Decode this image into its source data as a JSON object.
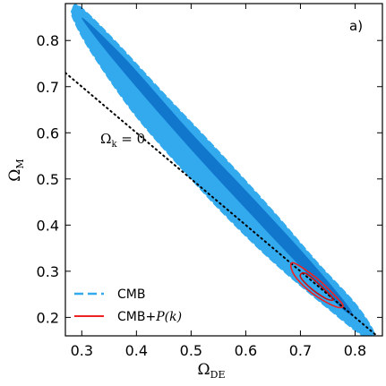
{
  "chart_data": {
    "type": "contour",
    "panel_label": "a)",
    "xlabel": {
      "main": "Ω",
      "sub": "DE"
    },
    "ylabel": {
      "main": "Ω",
      "sub": "M"
    },
    "xlim": [
      0.27,
      0.85
    ],
    "ylim": [
      0.16,
      0.88
    ],
    "x_ticks": [
      "0.3",
      "0.4",
      "0.5",
      "0.6",
      "0.7",
      "0.8"
    ],
    "y_ticks": [
      "0.2",
      "0.3",
      "0.4",
      "0.5",
      "0.6",
      "0.7",
      "0.8"
    ],
    "flat_line": {
      "label_main": "Ω",
      "label_sub": "k",
      "label_rest": " = 0",
      "x": [
        0.27,
        0.85
      ],
      "y": [
        0.73,
        0.15
      ]
    },
    "series": [
      {
        "name": "CMB",
        "color_outer": "#33aaee",
        "color_inner": "#1177cc",
        "outer": [
          [
            0.283,
            0.868
          ],
          [
            0.297,
            0.873
          ],
          [
            0.36,
            0.8
          ],
          [
            0.45,
            0.685
          ],
          [
            0.55,
            0.56
          ],
          [
            0.65,
            0.43
          ],
          [
            0.73,
            0.32
          ],
          [
            0.8,
            0.23
          ],
          [
            0.835,
            0.165
          ],
          [
            0.815,
            0.16
          ],
          [
            0.75,
            0.22
          ],
          [
            0.66,
            0.31
          ],
          [
            0.58,
            0.4
          ],
          [
            0.5,
            0.5
          ],
          [
            0.4,
            0.635
          ],
          [
            0.32,
            0.77
          ],
          [
            0.285,
            0.845
          ]
        ],
        "inner": [
          [
            0.3,
            0.85
          ],
          [
            0.38,
            0.76
          ],
          [
            0.5,
            0.6
          ],
          [
            0.62,
            0.45
          ],
          [
            0.72,
            0.32
          ],
          [
            0.79,
            0.22
          ],
          [
            0.78,
            0.215
          ],
          [
            0.7,
            0.31
          ],
          [
            0.6,
            0.435
          ],
          [
            0.48,
            0.59
          ],
          [
            0.36,
            0.755
          ]
        ]
      },
      {
        "name": "CMB+P(k)",
        "legend_text": "CMB+",
        "legend_math": "P(k)",
        "color_outer": "#ee2222",
        "color_inner": "#cc1111",
        "outer": [
          [
            0.688,
            0.318
          ],
          [
            0.73,
            0.285
          ],
          [
            0.765,
            0.245
          ],
          [
            0.778,
            0.225
          ],
          [
            0.765,
            0.223
          ],
          [
            0.73,
            0.245
          ],
          [
            0.7,
            0.275
          ],
          [
            0.684,
            0.303
          ]
        ],
        "inner": [
          [
            0.71,
            0.295
          ],
          [
            0.74,
            0.265
          ],
          [
            0.76,
            0.24
          ],
          [
            0.748,
            0.24
          ],
          [
            0.72,
            0.262
          ],
          [
            0.7,
            0.288
          ]
        ]
      }
    ],
    "legend_position": "bottom-left"
  }
}
